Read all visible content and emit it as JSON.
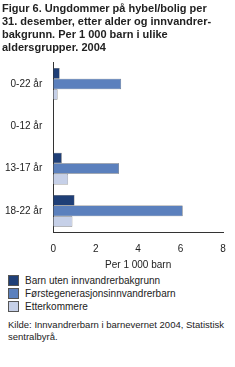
{
  "chart_data": {
    "type": "bar",
    "orientation": "horizontal",
    "title": [
      "Figur 6. Ungdommer på hybel/bolig per",
      "31. desember, etter alder og innvandrer-",
      "bakgrunn. Per 1 000 barn i ulike",
      "aldersgrupper. 2004"
    ],
    "x_label": "Per 1 000 barn",
    "categories": [
      "0-22 år",
      "0-12 år",
      "13-17 år",
      "18-22 år"
    ],
    "series": [
      {
        "name": "Barn uten innvandrerbakgrunn",
        "color": "#1f3f77",
        "values": [
          0.3,
          0,
          0.4,
          1.0
        ]
      },
      {
        "name": "Førstegenerasjonsinnvandrerbarn",
        "color": "#5b80bd",
        "values": [
          3.2,
          0,
          3.1,
          6.1
        ]
      },
      {
        "name": "Etterkommere",
        "color": "#c6d0e8",
        "values": [
          0.2,
          0,
          0.7,
          0.9
        ]
      }
    ],
    "xlim": [
      0,
      8
    ],
    "xticks": [
      0,
      2,
      4,
      6,
      8
    ],
    "grid": false,
    "legend": "bottom",
    "source": [
      "Kilde: Innvandrerbarn i barnevernet 2004, Statistisk",
      "sentralbyrå."
    ]
  }
}
